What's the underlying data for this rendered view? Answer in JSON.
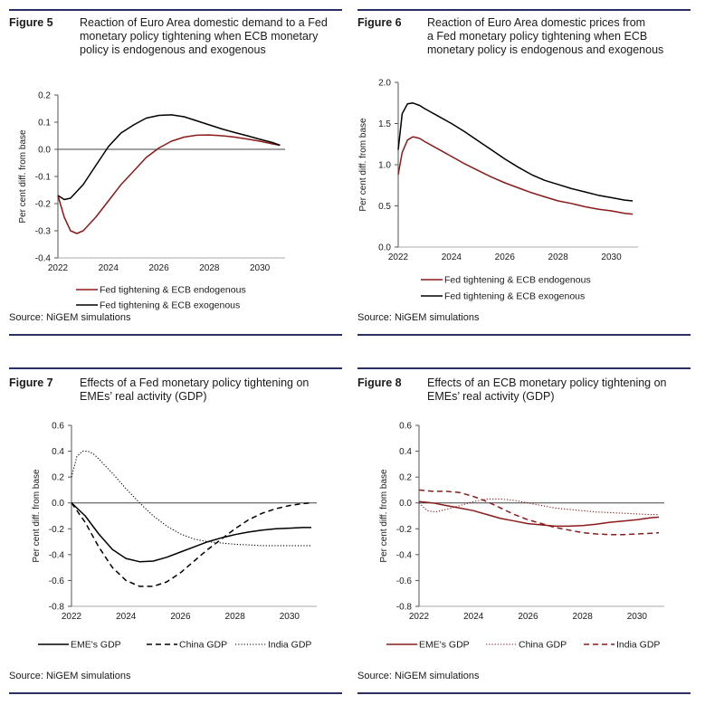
{
  "source_text": "Source: NiGEM simulations",
  "panels": [
    {
      "label": "Figure 5",
      "title": "Reaction of Euro Area domestic demand to a Fed\nmonetary policy tightening when ECB monetary\npolicy is endogenous and exogenous"
    },
    {
      "label": "Figure 6",
      "title": "Reaction of Euro Area domestic prices from\na Fed monetary policy tightening when ECB\nmonetary policy is endogenous and exogenous"
    },
    {
      "label": "Figure 7",
      "title": "Effects of a Fed monetary policy tightening on\nEMEs’ real activity (GDP)"
    },
    {
      "label": "Figure 8",
      "title": "Effects of an ECB monetary policy tightening on\nEMEs’ real activity (GDP)"
    }
  ],
  "chart_data": [
    {
      "type": "line",
      "ylabel": "Per cent  diff. from base",
      "xlim": [
        2022,
        2031
      ],
      "ylim": [
        -0.4,
        0.2
      ],
      "yticks": [
        -0.4,
        -0.3,
        -0.2,
        -0.1,
        0.0,
        0.1,
        0.2
      ],
      "ytick_labels": [
        "-0.4",
        "-0.3",
        "-0.2",
        "-0.1",
        "0.0",
        "0.1",
        "0.2"
      ],
      "xticks": [
        2022,
        2024,
        2026,
        2028,
        2030
      ],
      "xtick_labels": [
        "2022",
        "2024",
        "2026",
        "2028",
        "2030"
      ],
      "zero_line": true,
      "legend_position": "below",
      "series": [
        {
          "name": "Fed tightening & ECB endogenous",
          "color": "#8b1a1a",
          "dash": "solid",
          "x": [
            2022.0,
            2022.25,
            2022.5,
            2022.75,
            2023.0,
            2023.5,
            2024.0,
            2024.5,
            2025.0,
            2025.5,
            2026.0,
            2026.5,
            2027.0,
            2027.5,
            2028.0,
            2028.5,
            2029.0,
            2029.5,
            2030.0,
            2030.5,
            2030.8
          ],
          "y": [
            -0.17,
            -0.25,
            -0.3,
            -0.31,
            -0.3,
            -0.25,
            -0.19,
            -0.13,
            -0.08,
            -0.03,
            0.005,
            0.03,
            0.045,
            0.052,
            0.053,
            0.05,
            0.045,
            0.038,
            0.03,
            0.02,
            0.015
          ]
        },
        {
          "name": "Fed tightening & ECB exogenous",
          "color": "#000000",
          "dash": "solid",
          "x": [
            2022.0,
            2022.25,
            2022.5,
            2023.0,
            2023.5,
            2024.0,
            2024.5,
            2025.0,
            2025.5,
            2026.0,
            2026.5,
            2027.0,
            2027.5,
            2028.0,
            2028.5,
            2029.0,
            2029.5,
            2030.0,
            2030.5,
            2030.8
          ],
          "y": [
            -0.17,
            -0.185,
            -0.18,
            -0.13,
            -0.06,
            0.01,
            0.06,
            0.09,
            0.115,
            0.125,
            0.127,
            0.12,
            0.105,
            0.09,
            0.075,
            0.062,
            0.05,
            0.037,
            0.025,
            0.015
          ]
        }
      ]
    },
    {
      "type": "line",
      "ylabel": "Per cent  diff. from base",
      "xlim": [
        2022,
        2031
      ],
      "ylim": [
        0.0,
        2.0
      ],
      "yticks": [
        0.0,
        0.5,
        1.0,
        1.5,
        2.0
      ],
      "ytick_labels": [
        "0.0",
        "0.5",
        "1.0",
        "1.5",
        "2.0"
      ],
      "xticks": [
        2022,
        2024,
        2026,
        2028,
        2030
      ],
      "xtick_labels": [
        "2022",
        "2024",
        "2026",
        "2028",
        "2030"
      ],
      "zero_line": false,
      "legend_position": "below",
      "series": [
        {
          "name": "Fed tightening & ECB endogenous",
          "color": "#8b1a1a",
          "dash": "solid",
          "x": [
            2022.0,
            2022.15,
            2022.35,
            2022.55,
            2022.8,
            2023.0,
            2023.5,
            2024.0,
            2024.5,
            2025.0,
            2025.5,
            2026.0,
            2026.5,
            2027.0,
            2027.5,
            2028.0,
            2028.5,
            2029.0,
            2029.5,
            2030.0,
            2030.5,
            2030.8
          ],
          "y": [
            0.88,
            1.15,
            1.3,
            1.34,
            1.32,
            1.28,
            1.19,
            1.1,
            1.01,
            0.93,
            0.85,
            0.78,
            0.72,
            0.66,
            0.61,
            0.56,
            0.53,
            0.49,
            0.46,
            0.44,
            0.41,
            0.4
          ]
        },
        {
          "name": "Fed tightening & ECB exogenous",
          "color": "#000000",
          "dash": "solid",
          "x": [
            2022.0,
            2022.15,
            2022.35,
            2022.55,
            2022.8,
            2023.0,
            2023.5,
            2024.0,
            2024.5,
            2025.0,
            2025.5,
            2026.0,
            2026.5,
            2027.0,
            2027.5,
            2028.0,
            2028.5,
            2029.0,
            2029.5,
            2030.0,
            2030.5,
            2030.8
          ],
          "y": [
            1.18,
            1.62,
            1.74,
            1.75,
            1.72,
            1.68,
            1.59,
            1.5,
            1.4,
            1.29,
            1.18,
            1.07,
            0.97,
            0.88,
            0.81,
            0.76,
            0.71,
            0.67,
            0.63,
            0.6,
            0.57,
            0.56
          ]
        }
      ]
    },
    {
      "type": "line",
      "ylabel": "Per cent  diff. from base",
      "xlim": [
        2022,
        2031
      ],
      "ylim": [
        -0.8,
        0.6
      ],
      "yticks": [
        -0.8,
        -0.6,
        -0.4,
        -0.2,
        0.0,
        0.2,
        0.4,
        0.6
      ],
      "ytick_labels": [
        "-0.8",
        "-0.6",
        "-0.4",
        "-0.2",
        "0.0",
        "0.2",
        "0.4",
        "0.6"
      ],
      "xticks": [
        2022,
        2024,
        2026,
        2028,
        2030
      ],
      "xtick_labels": [
        "2022",
        "2024",
        "2026",
        "2028",
        "2030"
      ],
      "zero_line": true,
      "legend_position": "below",
      "series": [
        {
          "name": "EME's GDP",
          "color": "#000000",
          "dash": "solid",
          "x": [
            2022.0,
            2022.5,
            2023.0,
            2023.5,
            2024.0,
            2024.5,
            2025.0,
            2025.5,
            2026.0,
            2026.5,
            2027.0,
            2027.5,
            2028.0,
            2028.5,
            2029.0,
            2029.5,
            2030.0,
            2030.5,
            2030.8
          ],
          "y": [
            0.0,
            -0.1,
            -0.24,
            -0.36,
            -0.43,
            -0.455,
            -0.45,
            -0.42,
            -0.38,
            -0.34,
            -0.3,
            -0.27,
            -0.245,
            -0.225,
            -0.21,
            -0.2,
            -0.195,
            -0.19,
            -0.19
          ]
        },
        {
          "name": "China GDP",
          "color": "#000000",
          "dash": "dashed",
          "x": [
            2022.0,
            2022.5,
            2023.0,
            2023.5,
            2024.0,
            2024.5,
            2025.0,
            2025.5,
            2026.0,
            2026.5,
            2027.0,
            2027.5,
            2028.0,
            2028.5,
            2029.0,
            2029.5,
            2030.0,
            2030.5,
            2030.8
          ],
          "y": [
            0.0,
            -0.15,
            -0.34,
            -0.5,
            -0.6,
            -0.645,
            -0.645,
            -0.61,
            -0.54,
            -0.45,
            -0.36,
            -0.28,
            -0.2,
            -0.13,
            -0.08,
            -0.045,
            -0.02,
            -0.005,
            0.0
          ]
        },
        {
          "name": "India GDP",
          "color": "#000000",
          "dash": "dotted",
          "x": [
            2022.0,
            2022.2,
            2022.4,
            2022.6,
            2022.8,
            2023.0,
            2023.5,
            2024.0,
            2024.5,
            2025.0,
            2025.5,
            2026.0,
            2026.5,
            2027.0,
            2027.5,
            2028.0,
            2028.5,
            2029.0,
            2029.5,
            2030.0,
            2030.5,
            2030.8
          ],
          "y": [
            0.2,
            0.36,
            0.4,
            0.4,
            0.38,
            0.34,
            0.23,
            0.11,
            0.0,
            -0.1,
            -0.18,
            -0.24,
            -0.28,
            -0.3,
            -0.31,
            -0.32,
            -0.325,
            -0.33,
            -0.33,
            -0.33,
            -0.33,
            -0.33
          ]
        }
      ]
    },
    {
      "type": "line",
      "ylabel": "Per cent  diff. from base",
      "xlim": [
        2022,
        2031
      ],
      "ylim": [
        -0.8,
        0.6
      ],
      "yticks": [
        -0.8,
        -0.6,
        -0.4,
        -0.2,
        0.0,
        0.2,
        0.4,
        0.6
      ],
      "ytick_labels": [
        "-0.8",
        "-0.6",
        "-0.4",
        "-0.2",
        "0.0",
        "0.2",
        "0.4",
        "0.6"
      ],
      "xticks": [
        2022,
        2024,
        2026,
        2028,
        2030
      ],
      "xtick_labels": [
        "2022",
        "2024",
        "2026",
        "2028",
        "2030"
      ],
      "zero_line": true,
      "legend_position": "below",
      "series": [
        {
          "name": "EME's GDP",
          "color": "#8b1a1a",
          "dash": "solid",
          "x": [
            2022.0,
            2022.5,
            2023.0,
            2023.5,
            2024.0,
            2024.5,
            2025.0,
            2025.5,
            2026.0,
            2026.5,
            2027.0,
            2027.5,
            2028.0,
            2028.5,
            2029.0,
            2029.5,
            2030.0,
            2030.5,
            2030.8
          ],
          "y": [
            0.01,
            0.0,
            -0.02,
            -0.04,
            -0.06,
            -0.09,
            -0.12,
            -0.14,
            -0.16,
            -0.17,
            -0.18,
            -0.18,
            -0.175,
            -0.165,
            -0.15,
            -0.14,
            -0.13,
            -0.115,
            -0.11
          ]
        },
        {
          "name": "China GDP",
          "color": "#8b1a1a",
          "dash": "dotted",
          "x": [
            2022.0,
            2022.3,
            2022.6,
            2023.0,
            2023.5,
            2024.0,
            2024.5,
            2025.0,
            2025.5,
            2026.0,
            2026.5,
            2027.0,
            2027.5,
            2028.0,
            2028.5,
            2029.0,
            2029.5,
            2030.0,
            2030.5,
            2030.8
          ],
          "y": [
            0.0,
            -0.06,
            -0.07,
            -0.05,
            -0.02,
            0.01,
            0.03,
            0.03,
            0.02,
            0.0,
            -0.02,
            -0.04,
            -0.05,
            -0.06,
            -0.07,
            -0.075,
            -0.08,
            -0.085,
            -0.09,
            -0.09
          ]
        },
        {
          "name": "India GDP",
          "color": "#8b1a1a",
          "dash": "dashed",
          "x": [
            2022.0,
            2022.5,
            2023.0,
            2023.5,
            2024.0,
            2024.5,
            2025.0,
            2025.5,
            2026.0,
            2026.5,
            2027.0,
            2027.5,
            2028.0,
            2028.5,
            2029.0,
            2029.5,
            2030.0,
            2030.5,
            2030.8
          ],
          "y": [
            0.1,
            0.09,
            0.09,
            0.08,
            0.05,
            0.01,
            -0.04,
            -0.09,
            -0.13,
            -0.16,
            -0.19,
            -0.21,
            -0.23,
            -0.24,
            -0.245,
            -0.245,
            -0.24,
            -0.235,
            -0.23
          ]
        }
      ]
    }
  ]
}
